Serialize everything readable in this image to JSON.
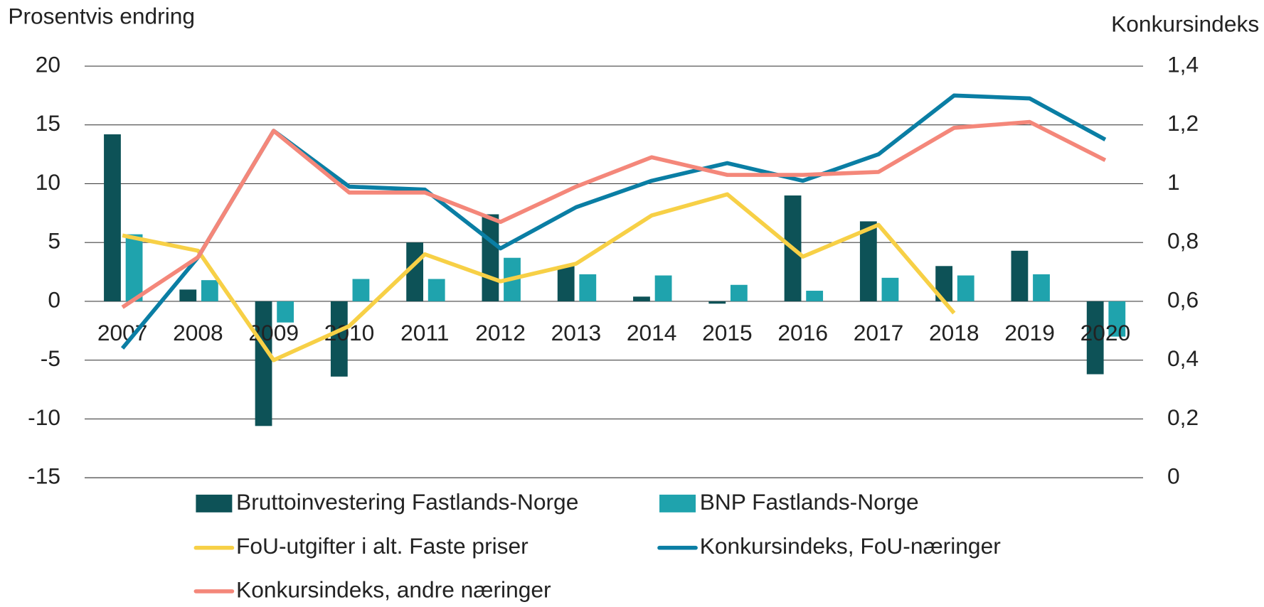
{
  "chart_data": {
    "type": "bar-line",
    "y_label": "Prosentvis endring",
    "y2_label": "Konkursindeks",
    "categories": [
      "2007",
      "2008",
      "2009",
      "2010",
      "2011",
      "2012",
      "2013",
      "2014",
      "2015",
      "2016",
      "2017",
      "2018",
      "2019",
      "2020"
    ],
    "series": [
      {
        "name": "Bruttoinvestering Fastlands-Norge",
        "type": "bar",
        "color": "#0d5257",
        "values": [
          14.2,
          1.0,
          -10.6,
          -6.4,
          5.0,
          7.4,
          3.0,
          0.4,
          -0.2,
          9.0,
          6.8,
          3.0,
          4.3,
          -6.2
        ]
      },
      {
        "name": "BNP Fastlands-Norge",
        "type": "bar",
        "color": "#1fa3ad",
        "values": [
          5.7,
          1.8,
          -1.8,
          1.9,
          1.9,
          3.7,
          2.3,
          2.2,
          1.4,
          0.9,
          2.0,
          2.2,
          2.3,
          -3.0
        ]
      },
      {
        "name": "FoU-utgifter i alt. Faste priser",
        "type": "line",
        "color": "#f7d046",
        "values": [
          5.6,
          4.3,
          -5.0,
          -2.1,
          4.0,
          1.7,
          3.2,
          7.3,
          9.1,
          3.8,
          6.5,
          -1.0,
          null,
          null
        ]
      },
      {
        "name": "Konkursindeks, FoU-næringer",
        "type": "line",
        "axis": "y2",
        "color": "#0a7ea4",
        "values": [
          0.44,
          0.75,
          1.18,
          0.99,
          0.98,
          0.78,
          0.92,
          1.01,
          1.07,
          1.01,
          1.1,
          1.3,
          1.29,
          1.15
        ]
      },
      {
        "name": "Konkursindeks, andre næringer",
        "type": "line",
        "axis": "y2",
        "color": "#f4877a",
        "values": [
          0.58,
          0.75,
          1.18,
          0.97,
          0.97,
          0.87,
          0.99,
          1.09,
          1.03,
          1.03,
          1.04,
          1.19,
          1.21,
          1.08
        ]
      }
    ],
    "ylim": [
      -15,
      20
    ],
    "yticks": [
      -15,
      -10,
      -5,
      0,
      5,
      10,
      15,
      20
    ],
    "y2lim": [
      0,
      1.4
    ],
    "y2ticks": [
      0,
      {
        "value": 0.2,
        "label": "0,2"
      },
      {
        "value": 0.4,
        "label": "0,4"
      },
      {
        "value": 0.6,
        "label": "0,6"
      },
      {
        "value": 0.8,
        "label": "0,8"
      },
      1,
      {
        "value": 1.2,
        "label": "1,2"
      },
      {
        "value": 1.4,
        "label": "1,4"
      }
    ],
    "grid": true
  }
}
